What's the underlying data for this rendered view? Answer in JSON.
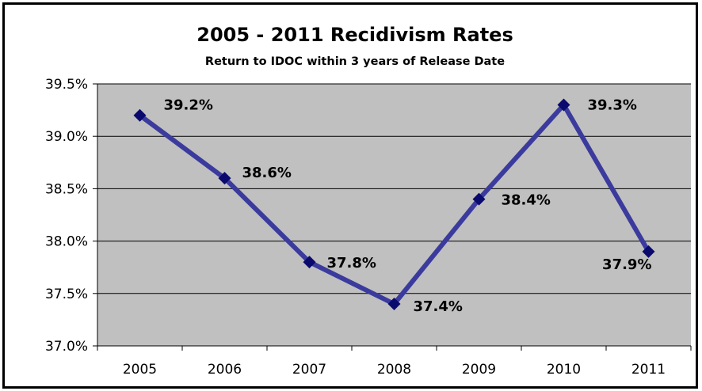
{
  "chart_data": {
    "type": "line",
    "title": "2005 - 2011 Recidivism Rates",
    "subtitle": "Return to IDOC within 3 years of Release Date",
    "xlabel": "",
    "ylabel": "",
    "categories": [
      "2005",
      "2006",
      "2007",
      "2008",
      "2009",
      "2010",
      "2011"
    ],
    "series": [
      {
        "values": [
          39.2,
          38.6,
          37.8,
          37.4,
          38.4,
          39.3,
          37.9
        ],
        "data_labels": [
          "39.2%",
          "38.6%",
          "37.8%",
          "37.4%",
          "38.4%",
          "39.3%",
          "37.9%"
        ],
        "color": "#3b3b9e",
        "marker_color": "#0a0a6e"
      }
    ],
    "ylim": [
      37.0,
      39.5
    ],
    "yticks": [
      37.0,
      37.5,
      38.0,
      38.5,
      39.0,
      39.5
    ],
    "ytick_labels": [
      "37.0%",
      "37.5%",
      "38.0%",
      "38.5%",
      "39.0%",
      "39.5%"
    ],
    "grid": true,
    "legend": "none",
    "plot_background": "#c0c0c0"
  }
}
